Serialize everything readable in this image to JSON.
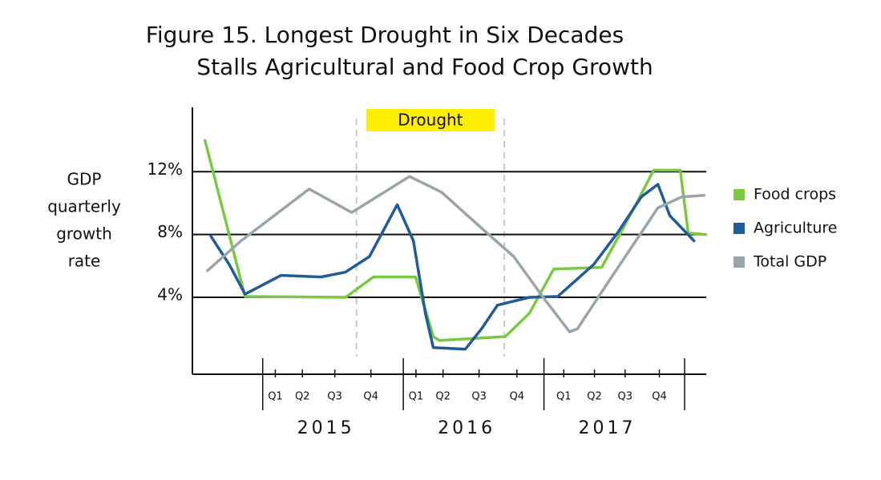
{
  "chart_data": {
    "type": "line",
    "title": [
      "Figure 15. Longest Drought in Six Decades",
      "Stalls Agricultural and Food Crop Growth"
    ],
    "y_label": [
      "GDP",
      "quarterly",
      "growth",
      "rate"
    ],
    "xlim": [
      -1.95,
      12.3
    ],
    "xticks": [
      {
        "value": 0.35,
        "label": "Q1"
      },
      {
        "value": 1.1,
        "label": "Q2"
      },
      {
        "value": 2,
        "label": "Q3"
      },
      {
        "value": 3,
        "label": "Q4"
      },
      {
        "value": 4.25,
        "label": "Q1"
      },
      {
        "value": 5,
        "label": "Q2"
      },
      {
        "value": 6,
        "label": "Q3"
      },
      {
        "value": 7.05,
        "label": "Q4"
      },
      {
        "value": 8.35,
        "label": "Q1"
      },
      {
        "value": 9.2,
        "label": "Q2"
      },
      {
        "value": 10.05,
        "label": "Q3"
      },
      {
        "value": 11,
        "label": "Q4"
      }
    ],
    "x_groups": [
      "2015",
      "2016",
      "2017"
    ],
    "ylim": [
      -0.9,
      16.1
    ],
    "yticks": [
      {
        "value": 4,
        "label": "4%"
      },
      {
        "value": 8,
        "label": "8%"
      },
      {
        "value": 12,
        "label": "12%"
      }
    ],
    "grid": true,
    "drought": {
      "label": "Drought",
      "x": [
        2.6,
        6.7
      ]
    },
    "legend": "right",
    "series": [
      {
        "name": "Food crops",
        "color": "#7ac943",
        "x": [
          -1.6,
          -0.49,
          2.3,
          3.07,
          4.24,
          4.73,
          4.9,
          6.73,
          7.4,
          8.07,
          9.4,
          10.3,
          10.84,
          11.58,
          11.8,
          12.29
        ],
        "values": [
          14.0,
          4.05,
          4.0,
          5.3,
          5.3,
          1.5,
          1.25,
          1.5,
          3.0,
          5.8,
          5.9,
          9.7,
          12.1,
          12.1,
          8.1,
          8.0
        ]
      },
      {
        "name": "Agriculture",
        "color": "#1f5c99",
        "x": [
          -1.44,
          -0.93,
          -0.49,
          0.51,
          1.62,
          2.29,
          2.96,
          3.73,
          4.18,
          4.51,
          4.73,
          5.62,
          6.07,
          6.51,
          7.4,
          8.18,
          9.18,
          9.84,
          10.5,
          10.96,
          11.29,
          11.96
        ],
        "values": [
          7.9,
          6.1,
          4.2,
          5.4,
          5.3,
          5.6,
          6.6,
          9.9,
          7.6,
          3.0,
          0.8,
          0.7,
          2.0,
          3.5,
          4.0,
          4.05,
          6.1,
          8.1,
          10.4,
          11.2,
          9.2,
          7.6
        ]
      },
      {
        "name": "Total GDP",
        "color": "#9aa5ab",
        "x": [
          -1.53,
          -0.6,
          1.29,
          2.47,
          4.07,
          4.96,
          6.07,
          6.96,
          7.84,
          8.51,
          8.73,
          9.62,
          10.29,
          10.96,
          11.62,
          12.24
        ],
        "values": [
          5.7,
          7.6,
          10.9,
          9.4,
          11.7,
          10.7,
          8.4,
          6.6,
          3.8,
          1.8,
          2.0,
          5.1,
          7.4,
          9.7,
          10.4,
          10.5
        ]
      }
    ]
  }
}
